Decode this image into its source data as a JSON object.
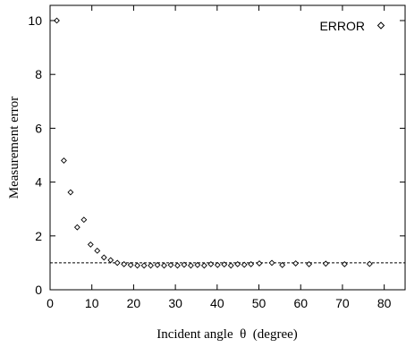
{
  "chart_data": {
    "type": "scatter",
    "title": "",
    "xlabel": "Incident angle  θ  (degree)",
    "ylabel": "Measurement error",
    "xlim": [
      0,
      85
    ],
    "ylim": [
      0,
      10.5
    ],
    "xticks": [
      0,
      10,
      20,
      30,
      40,
      50,
      60,
      70,
      80
    ],
    "yticks": [
      0,
      2,
      4,
      6,
      8,
      10
    ],
    "grid": false,
    "legend_position": "top-right",
    "series": [
      {
        "name": "ERROR",
        "marker": "diamond",
        "points": [
          [
            1.6,
            10.0
          ],
          [
            3.3,
            4.8
          ],
          [
            4.9,
            3.62
          ],
          [
            6.5,
            2.32
          ],
          [
            8.1,
            2.6
          ],
          [
            9.7,
            1.68
          ],
          [
            11.3,
            1.45
          ],
          [
            12.9,
            1.2
          ],
          [
            14.5,
            1.1
          ],
          [
            16.1,
            1.0
          ],
          [
            17.7,
            0.95
          ],
          [
            19.3,
            0.92
          ],
          [
            20.9,
            0.9
          ],
          [
            22.5,
            0.9
          ],
          [
            24.1,
            0.9
          ],
          [
            25.7,
            0.92
          ],
          [
            27.3,
            0.9
          ],
          [
            28.9,
            0.92
          ],
          [
            30.5,
            0.9
          ],
          [
            32.1,
            0.93
          ],
          [
            33.7,
            0.9
          ],
          [
            35.3,
            0.92
          ],
          [
            36.9,
            0.9
          ],
          [
            38.5,
            0.95
          ],
          [
            40.1,
            0.92
          ],
          [
            41.7,
            0.94
          ],
          [
            43.3,
            0.9
          ],
          [
            44.9,
            0.95
          ],
          [
            46.5,
            0.93
          ],
          [
            48.1,
            0.95
          ],
          [
            50.1,
            0.98
          ],
          [
            53.1,
            1.0
          ],
          [
            55.6,
            0.92
          ],
          [
            58.8,
            0.98
          ],
          [
            62.0,
            0.95
          ],
          [
            66.0,
            0.97
          ],
          [
            70.5,
            0.95
          ],
          [
            76.5,
            0.96
          ]
        ]
      }
    ],
    "reference_line": {
      "y": 1.0,
      "style": "dashed"
    }
  },
  "colors": {
    "axis": "#000000",
    "marker_stroke": "#000000",
    "marker_fill": "#ffffff",
    "reference_line": "#000000"
  }
}
